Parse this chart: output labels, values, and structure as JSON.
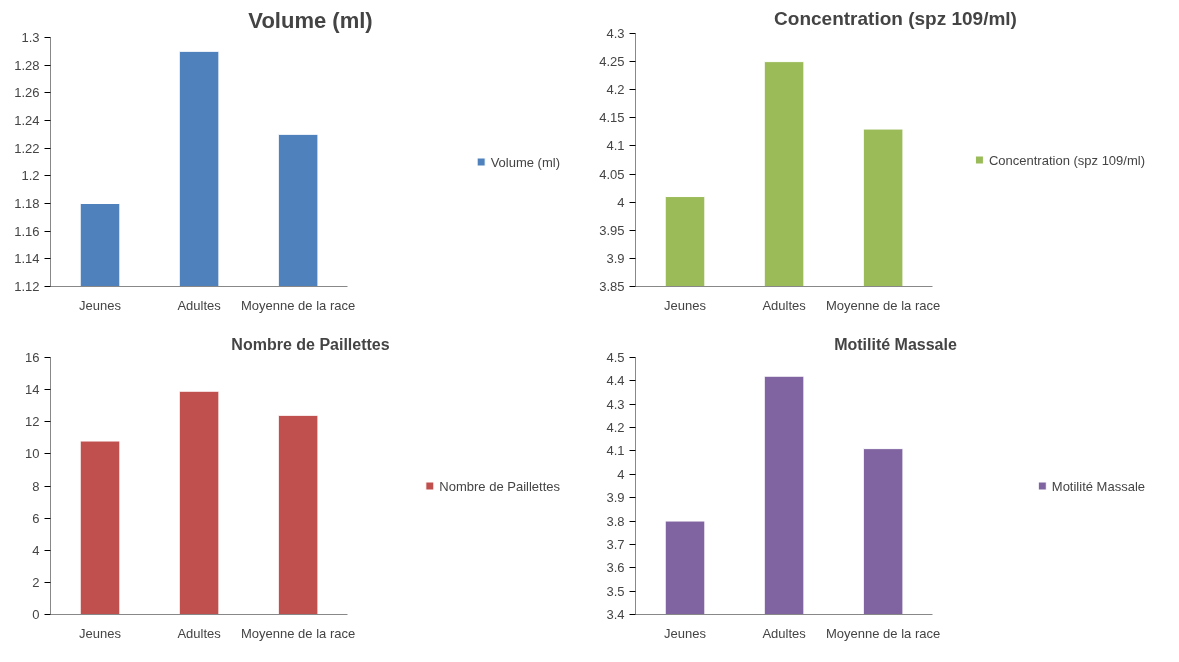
{
  "chart_data": [
    {
      "type": "bar",
      "title": "Volume (ml)",
      "categories": [
        "Jeunes",
        "Adultes",
        "Moyenne de la race"
      ],
      "series": [
        {
          "name": "Volume (ml)",
          "color": "#4f81bd",
          "values": [
            1.18,
            1.29,
            1.23
          ]
        }
      ],
      "ylim": [
        1.12,
        1.3
      ],
      "yticks": [
        1.12,
        1.14,
        1.16,
        1.18,
        1.2,
        1.22,
        1.24,
        1.26,
        1.28,
        1.3
      ],
      "legend": "right"
    },
    {
      "type": "bar",
      "title": "Concentration (spz 109/ml)",
      "categories": [
        "Jeunes",
        "Adultes",
        "Moyenne de la race"
      ],
      "series": [
        {
          "name": "Concentration (spz 109/ml)",
          "color": "#9bbb59",
          "values": [
            4.01,
            4.25,
            4.13
          ]
        }
      ],
      "ylim": [
        3.85,
        4.3
      ],
      "yticks": [
        3.85,
        3.9,
        3.95,
        4,
        4.05,
        4.1,
        4.15,
        4.2,
        4.25,
        4.3
      ],
      "legend": "right"
    },
    {
      "type": "bar",
      "title": "Nombre de Paillettes",
      "categories": [
        "Jeunes",
        "Adultes",
        "Moyenne de la race"
      ],
      "series": [
        {
          "name": "Nombre de Paillettes",
          "color": "#c0504d",
          "values": [
            10.8,
            13.9,
            12.4
          ]
        }
      ],
      "ylim": [
        0,
        16
      ],
      "yticks": [
        0,
        2,
        4,
        6,
        8,
        10,
        12,
        14,
        16
      ],
      "legend": "right"
    },
    {
      "type": "bar",
      "title": "Motilité Massale",
      "categories": [
        "Jeunes",
        "Adultes",
        "Moyenne de la race"
      ],
      "series": [
        {
          "name": "Motilité Massale",
          "color": "#8064a2",
          "values": [
            3.8,
            4.42,
            4.11
          ]
        }
      ],
      "ylim": [
        3.4,
        4.5
      ],
      "yticks": [
        3.4,
        3.5,
        3.6,
        3.7,
        3.8,
        3.9,
        4,
        4.1,
        4.2,
        4.3,
        4.4,
        4.5
      ],
      "legend": "right"
    }
  ]
}
